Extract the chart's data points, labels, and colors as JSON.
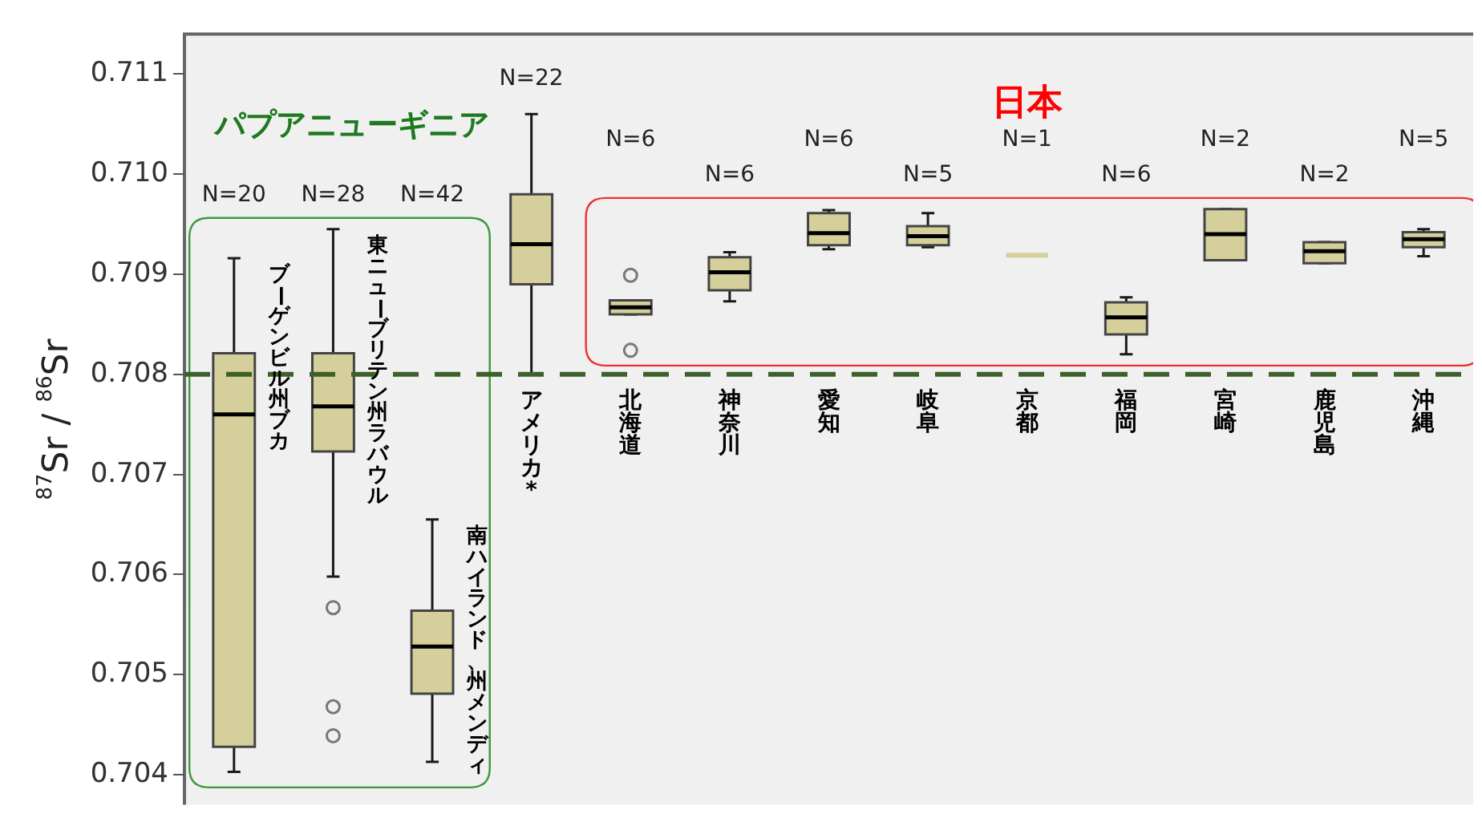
{
  "chart_data": {
    "type": "box",
    "ylabel": "$^{87}$Sr / $^{86}$Sr",
    "categories": [
      "ブーゲンビル州ブカ",
      "東ニューブリテン州ラバウル",
      "南ハイランド、州メンディ",
      "アメリカ*",
      "北海道",
      "神奈川",
      "愛知",
      "岐阜",
      "京都",
      "福岡",
      "宮崎",
      "鹿児島",
      "沖縄"
    ],
    "boxes": [
      {
        "low": 0.70403,
        "q1": 0.70428,
        "median": 0.7076,
        "q3": 0.70821,
        "high": 0.70916
      },
      {
        "low": 0.70598,
        "q1": 0.70723,
        "median": 0.70768,
        "q3": 0.70821,
        "high": 0.70945,
        "outliers": [
          0.70567,
          0.70468,
          0.70439
        ]
      },
      {
        "low": 0.70413,
        "q1": 0.70481,
        "median": 0.70528,
        "q3": 0.70564,
        "high": 0.70655
      },
      {
        "low": 0.708,
        "q1": 0.7089,
        "median": 0.7093,
        "q3": 0.7098,
        "high": 0.7106
      },
      {
        "low": 0.7086,
        "q1": 0.7086,
        "median": 0.70867,
        "q3": 0.70874,
        "high": 0.70874,
        "outliers": [
          0.70899,
          0.70824
        ]
      },
      {
        "low": 0.70873,
        "q1": 0.70884,
        "median": 0.70902,
        "q3": 0.70917,
        "high": 0.70922
      },
      {
        "low": 0.70925,
        "q1": 0.70929,
        "median": 0.70941,
        "q3": 0.70961,
        "high": 0.70964
      },
      {
        "low": 0.70927,
        "q1": 0.70929,
        "median": 0.70938,
        "q3": 0.70948,
        "high": 0.70961
      },
      {
        "low": 0.70919,
        "q1": 0.70919,
        "median": 0.70919,
        "q3": 0.70919,
        "high": 0.70919
      },
      {
        "low": 0.7082,
        "q1": 0.7084,
        "median": 0.70857,
        "q3": 0.70872,
        "high": 0.70877
      },
      {
        "low": 0.70914,
        "q1": 0.70914,
        "median": 0.7094,
        "q3": 0.70965,
        "high": 0.70965
      },
      {
        "low": 0.70911,
        "q1": 0.70911,
        "median": 0.70923,
        "q3": 0.70932,
        "high": 0.70932
      },
      {
        "low": 0.70918,
        "q1": 0.70927,
        "median": 0.70935,
        "q3": 0.70942,
        "high": 0.70945
      }
    ],
    "color": "#d5cf9b",
    "ylim": [
      0.7037,
      0.7114
    ],
    "yticks": [
      0.704,
      0.705,
      0.706,
      0.707,
      0.708,
      0.709,
      {
        "value": 0.71,
        "label": "0.710"
      },
      0.711
    ],
    "ref_lines": [
      {
        "axis": "y",
        "value": 0.708,
        "color": "#3d6128",
        "line_style": "dashed"
      }
    ],
    "annotations": [
      "パプアニューギニア",
      "日本",
      "N=20",
      "N=28",
      "N=42",
      "N=22",
      "N=6",
      "N=6",
      "N=6",
      "N=5",
      "N=1",
      "N=6",
      "N=2",
      "N=2",
      "N=5"
    ]
  }
}
